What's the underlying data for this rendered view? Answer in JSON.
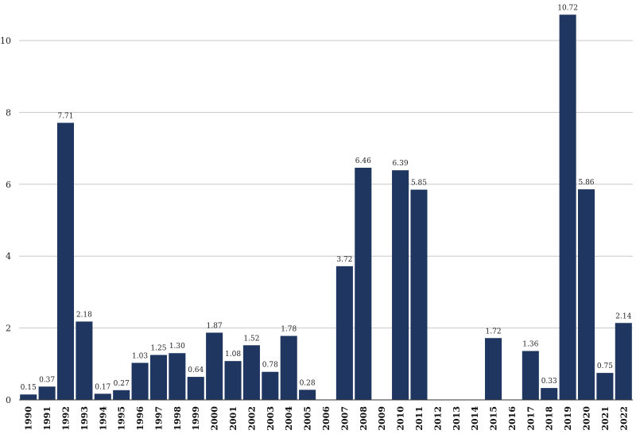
{
  "chart_data": {
    "type": "bar",
    "title": "",
    "xlabel": "",
    "ylabel": "",
    "ylim": [
      0,
      11
    ],
    "yticks": [
      0,
      2,
      4,
      6,
      8,
      10
    ],
    "grid": true,
    "bar_color": "#1f3760",
    "categories": [
      "1990",
      "1991",
      "1992",
      "1993",
      "1994",
      "1995",
      "1996",
      "1997",
      "1998",
      "1999",
      "2000",
      "2001",
      "2002",
      "2003",
      "2004",
      "2005",
      "2006",
      "2007",
      "2008",
      "2009",
      "2010",
      "2011",
      "2012",
      "2013",
      "2014",
      "2015",
      "2016",
      "2017",
      "2018",
      "2019",
      "2020",
      "2021",
      "2022"
    ],
    "values": [
      0.15,
      0.37,
      7.71,
      2.18,
      0.17,
      0.27,
      1.03,
      1.25,
      1.3,
      0.64,
      1.87,
      1.08,
      1.52,
      0.78,
      1.78,
      0.28,
      null,
      3.72,
      6.46,
      null,
      6.39,
      5.85,
      null,
      null,
      null,
      1.72,
      null,
      1.36,
      0.33,
      10.72,
      5.86,
      0.75,
      2.14
    ],
    "labels": [
      "0.15",
      "0.37",
      "7.71",
      "2.18",
      "0.17",
      "0.27",
      "1.03",
      "1.25",
      "1.30",
      "0.64",
      "1.87",
      "1.08",
      "1.52",
      "0.78",
      "1.78",
      "0.28",
      "",
      "3.72",
      "6.46",
      "",
      "6.39",
      "5.85",
      "",
      "",
      "",
      "1.72",
      "",
      "1.36",
      "0.33",
      "10.72",
      "5.86",
      "0.75",
      "2.14"
    ]
  }
}
